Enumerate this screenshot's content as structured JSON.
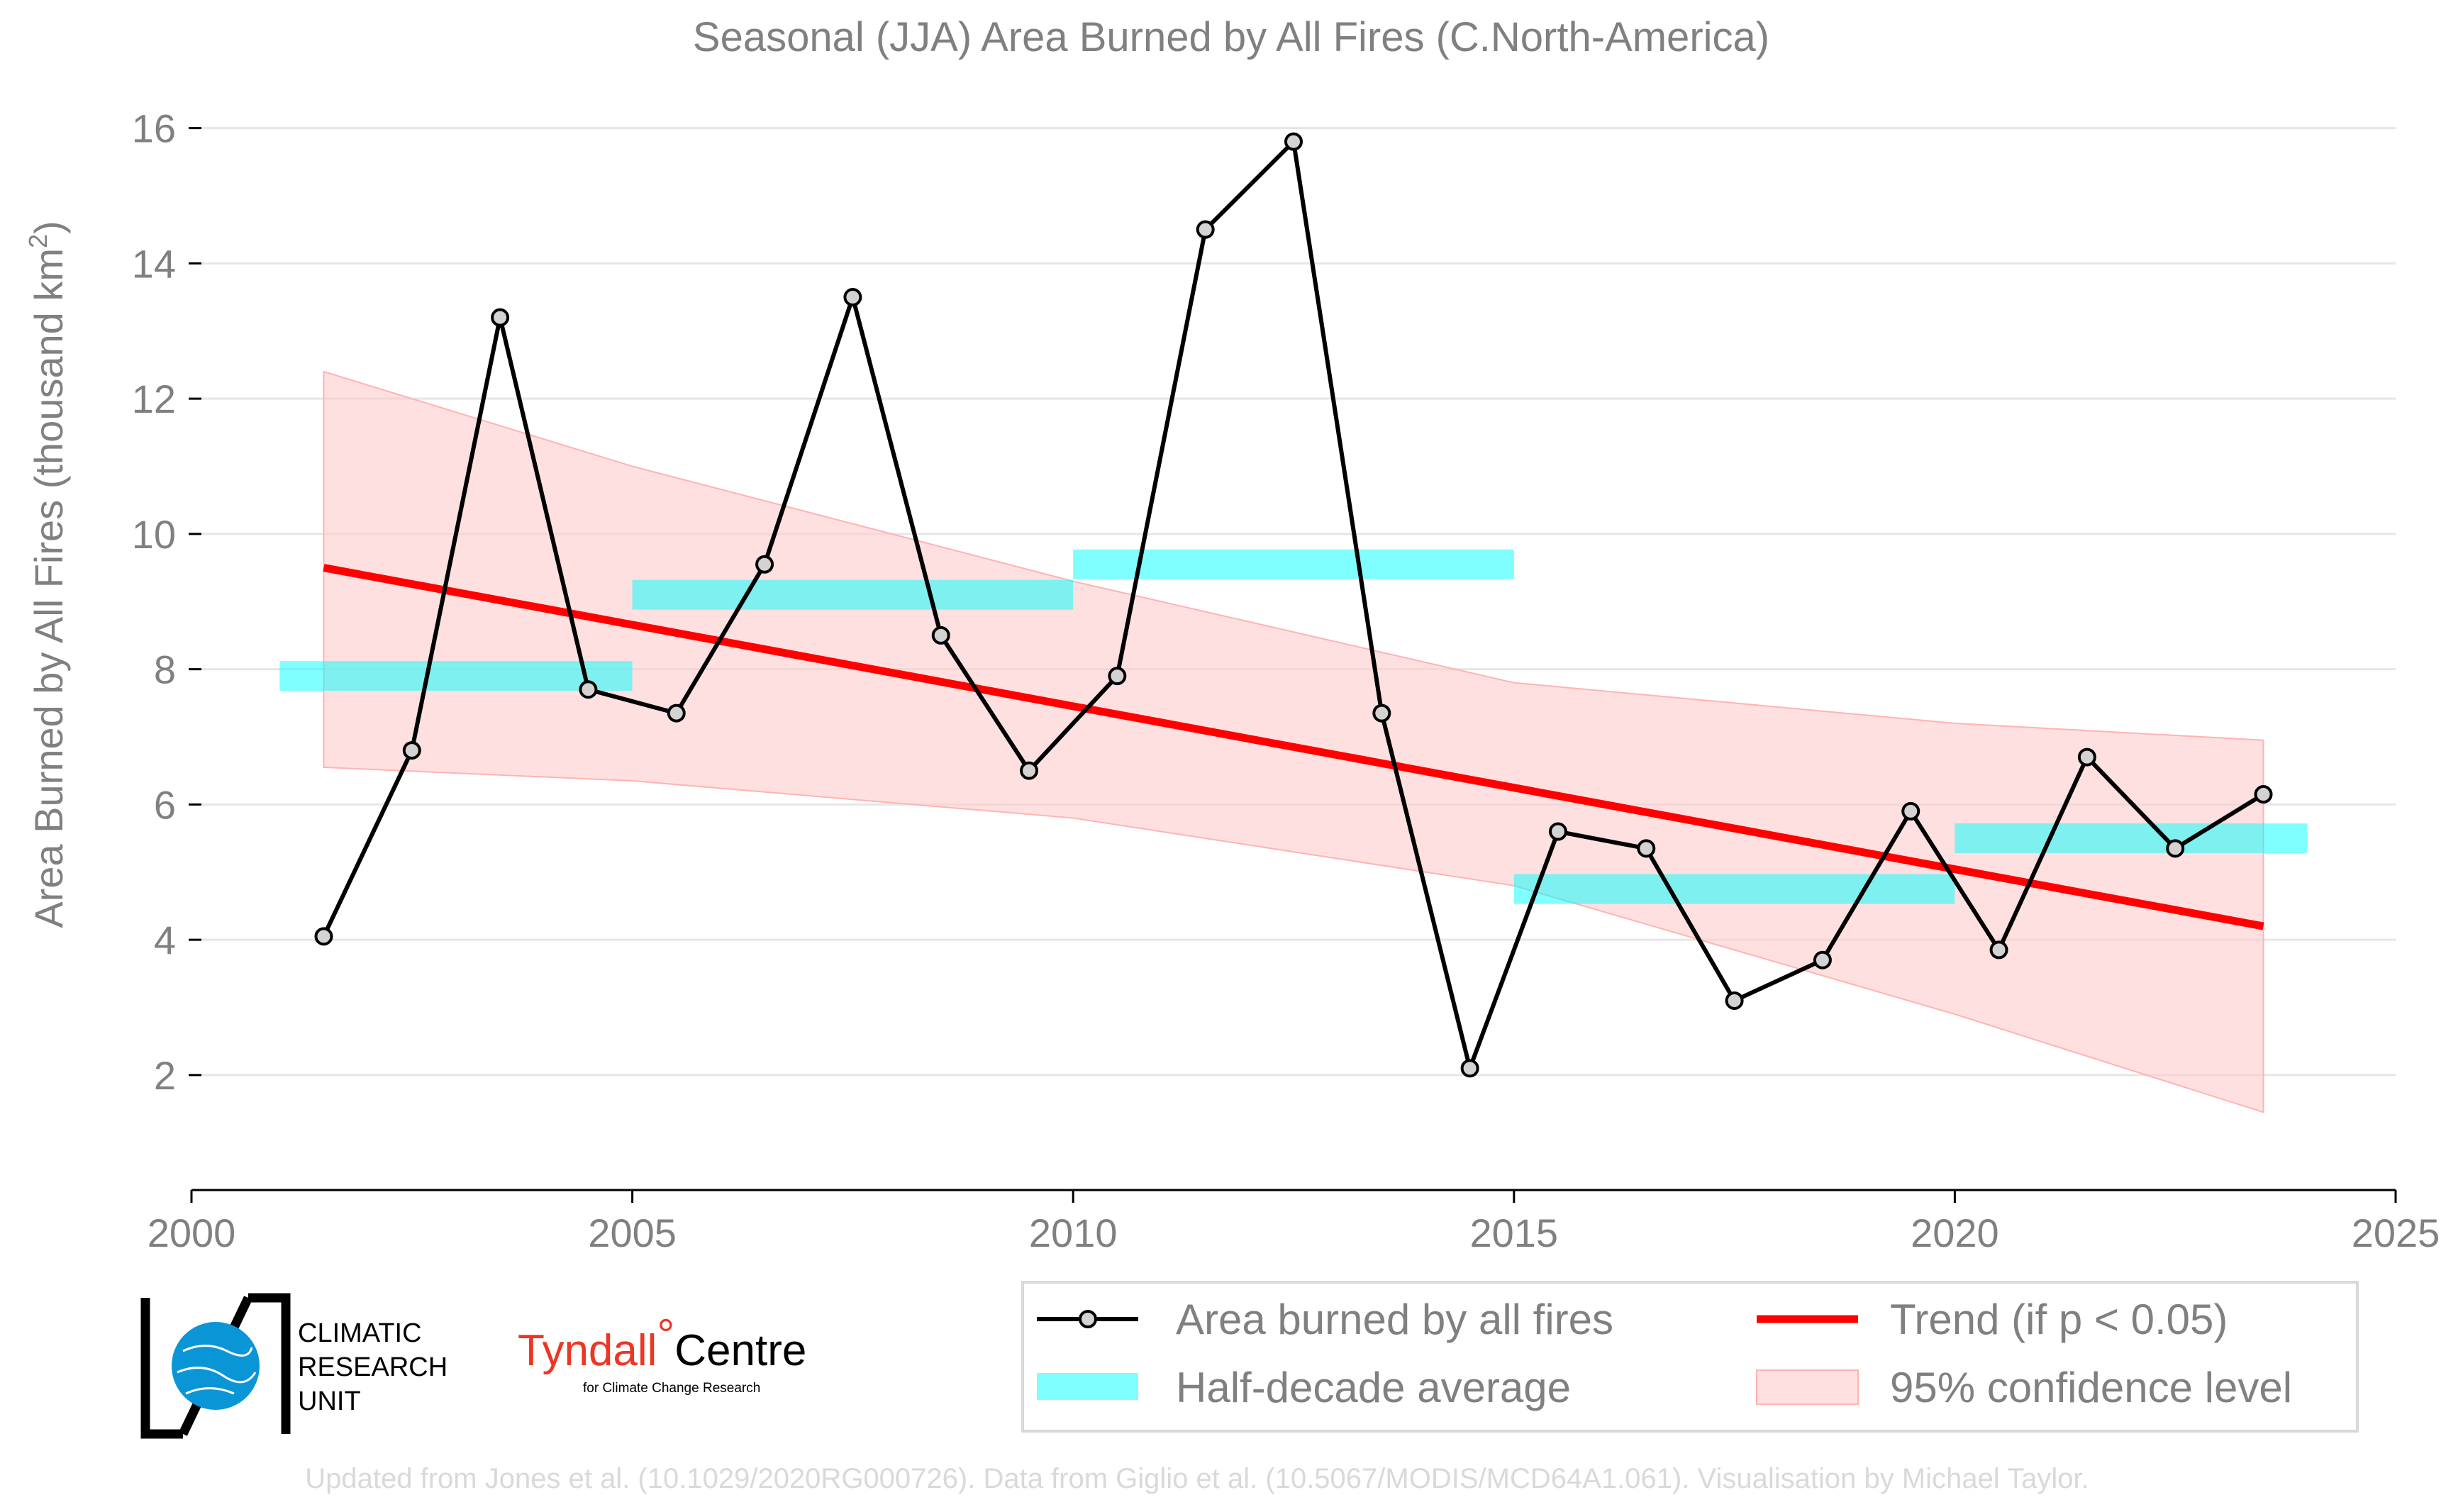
{
  "chart_data": {
    "type": "line",
    "title": "Seasonal (JJA) Area Burned by All Fires (C.North-America)",
    "ylabel_main": "Area Burned by All Fires (thousand km",
    "ylabel_sup": "2",
    "ylabel_end": ")",
    "xlim": [
      2000,
      2025
    ],
    "ylim": [
      0.3,
      16.3
    ],
    "x_ticks": [
      2000,
      2005,
      2010,
      2015,
      2020,
      2025
    ],
    "y_ticks": [
      2,
      4,
      6,
      8,
      10,
      12,
      14,
      16
    ],
    "grid": true,
    "series": [
      {
        "name": "Area burned by all fires",
        "color": "#000000",
        "x": [
          2001.5,
          2002.5,
          2003.5,
          2004.5,
          2005.5,
          2006.5,
          2007.5,
          2008.5,
          2009.5,
          2010.5,
          2011.5,
          2012.5,
          2013.5,
          2014.5,
          2015.5,
          2016.5,
          2017.5,
          2018.5,
          2019.5,
          2020.5,
          2021.5,
          2022.5,
          2023.5
        ],
        "y": [
          4.05,
          6.8,
          13.2,
          7.7,
          7.35,
          9.55,
          13.5,
          8.5,
          6.5,
          7.9,
          14.5,
          15.8,
          7.35,
          2.1,
          5.6,
          5.35,
          3.1,
          3.7,
          5.9,
          3.85,
          6.7,
          5.35,
          6.15
        ]
      }
    ],
    "half_decade_average": {
      "name": "Half-decade average",
      "color": "#00ffff",
      "segments": [
        {
          "x0": 2001,
          "x1": 2005,
          "y": 7.9
        },
        {
          "x0": 2005,
          "x1": 2010,
          "y": 9.1
        },
        {
          "x0": 2010,
          "x1": 2015,
          "y": 9.55
        },
        {
          "x0": 2015,
          "x1": 2020,
          "y": 4.75
        },
        {
          "x0": 2020,
          "x1": 2024,
          "y": 5.5
        }
      ]
    },
    "trend": {
      "name": "Trend (if p < 0.05)",
      "color": "#ff0000",
      "x": [
        2001.5,
        2023.5
      ],
      "y": [
        9.5,
        4.2
      ]
    },
    "confidence_band": {
      "name": "95% confidence level",
      "color": "#ffcccc",
      "x": [
        2001.5,
        2005,
        2010,
        2015,
        2020,
        2023.5
      ],
      "upper": [
        12.4,
        11.0,
        9.3,
        7.8,
        7.2,
        6.95
      ],
      "lower": [
        6.55,
        6.35,
        5.8,
        4.8,
        2.9,
        1.45
      ]
    },
    "legend_position": "bottom-right",
    "footer": "Updated from Jones et al. (10.1029/2020RG000726). Data from Giglio et al. (10.5067/MODIS/MCD64A1.061). Visualisation by Michael Taylor."
  },
  "logos": {
    "cru_lines": [
      "CLIMATIC",
      "RESEARCH",
      "UNIT"
    ],
    "tyndall_red": "Tyndall",
    "tyndall_degree": "°",
    "tyndall_black": "Centre",
    "tyndall_sub": "for Climate Change Research"
  }
}
